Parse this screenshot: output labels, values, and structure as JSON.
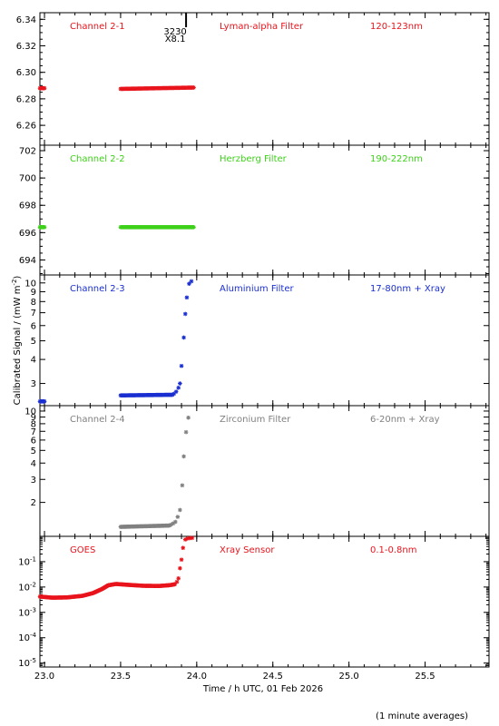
{
  "figure": {
    "ylabel_text": "Calibrated Signal / (mW m",
    "ylabel_sup": "-2",
    "ylabel_close": ")",
    "xlabel": "Time / h UTC, 01 Feb 2026",
    "footnote": "(1 minute averages)",
    "xticks": [
      "23.0",
      "23.5",
      "24.0",
      "24.5",
      "25.0",
      "25.5"
    ],
    "xlim": [
      22.97,
      25.92
    ],
    "colors": {
      "red": "#e8141c",
      "green": "#3ed11a",
      "blue": "#1a2fd0",
      "grey": "#808080",
      "black": "#000000"
    }
  },
  "chart_data": [
    {
      "type": "scatter",
      "channel": "Channel 2-1",
      "filter": "Lyman-alpha Filter",
      "band": "120-123nm",
      "color": "#e8141c",
      "yscale": "linear",
      "ylim": [
        6.245,
        6.345
      ],
      "yticks": [
        "6.26",
        "6.28",
        "6.30",
        "6.32",
        "6.34"
      ],
      "yticks_values": [
        6.26,
        6.28,
        6.3,
        6.32,
        6.34
      ],
      "annotation": {
        "lines": [
          "3230",
          "X8.1"
        ],
        "x": 23.93
      },
      "segments": [
        {
          "x_start": 22.97,
          "x_end": 23.0,
          "y_start": 6.288,
          "y_end": 6.288
        },
        {
          "x_start": 23.5,
          "x_end": 23.98,
          "y_start": 6.2875,
          "y_end": 6.2885
        }
      ],
      "points": []
    },
    {
      "type": "scatter",
      "channel": "Channel 2-2",
      "filter": "Herzberg Filter",
      "band": "190-222nm",
      "color": "#3ed11a",
      "yscale": "linear",
      "ylim": [
        692.9,
        702.4
      ],
      "yticks": [
        "694",
        "696",
        "698",
        "700",
        "702"
      ],
      "yticks_values": [
        694,
        696,
        698,
        700,
        702
      ],
      "segments": [
        {
          "x_start": 22.97,
          "x_end": 23.0,
          "y_start": 696.4,
          "y_end": 696.4
        },
        {
          "x_start": 23.5,
          "x_end": 23.98,
          "y_start": 696.4,
          "y_end": 696.4
        }
      ],
      "points": []
    },
    {
      "type": "scatter",
      "channel": "Channel 2-3",
      "filter": "Aluminium Filter",
      "band": "17-80nm + Xray",
      "color": "#1a2fd0",
      "yscale": "log",
      "ylim": [
        2.3,
        11.0
      ],
      "yticks": [
        "3",
        "4",
        "5",
        "6",
        "7",
        "8",
        "9",
        "10"
      ],
      "yticks_values": [
        3,
        4,
        5,
        6,
        7,
        8,
        9,
        10
      ],
      "segments": [
        {
          "x_start": 22.97,
          "x_end": 23.0,
          "y_start": 2.42,
          "y_end": 2.42
        },
        {
          "x_start": 23.5,
          "x_end": 23.84,
          "y_start": 2.6,
          "y_end": 2.62
        }
      ],
      "points": [
        [
          23.85,
          2.65
        ],
        [
          23.865,
          2.72
        ],
        [
          23.88,
          2.85
        ],
        [
          23.89,
          3.0
        ],
        [
          23.9,
          3.7
        ],
        [
          23.915,
          5.2
        ],
        [
          23.925,
          6.9
        ],
        [
          23.935,
          8.4
        ],
        [
          23.95,
          9.9
        ],
        [
          23.965,
          10.2
        ]
      ]
    },
    {
      "type": "scatter",
      "channel": "Channel 2-4",
      "filter": "Zirconium Filter",
      "band": "6-20nm + Xray",
      "color": "#808080",
      "yscale": "log",
      "ylim": [
        1.1,
        11.0
      ],
      "yticks": [
        "2",
        "3",
        "4",
        "5",
        "6",
        "7",
        "8",
        "9",
        "10"
      ],
      "yticks_values": [
        2,
        3,
        4,
        5,
        6,
        7,
        8,
        9,
        10
      ],
      "segments": [
        {
          "x_start": 23.5,
          "x_end": 23.82,
          "y_start": 1.3,
          "y_end": 1.33
        }
      ],
      "points": [
        [
          23.83,
          1.35
        ],
        [
          23.845,
          1.38
        ],
        [
          23.86,
          1.42
        ],
        [
          23.875,
          1.55
        ],
        [
          23.89,
          1.75
        ],
        [
          23.905,
          2.7
        ],
        [
          23.915,
          4.5
        ],
        [
          23.93,
          6.9
        ],
        [
          23.945,
          8.9
        ]
      ]
    },
    {
      "type": "scatter",
      "channel": "GOES",
      "filter": "Xray Sensor",
      "band": "0.1-0.8nm",
      "color": "#e8141c",
      "yscale": "log",
      "ylim": [
        7e-06,
        1.0
      ],
      "yticks_values": [
        1e-05,
        0.0001,
        0.001,
        0.01,
        0.1
      ],
      "yticks": [
        {
          "base": "10",
          "exp": "-5"
        },
        {
          "base": "10",
          "exp": "-4"
        },
        {
          "base": "10",
          "exp": "-3"
        },
        {
          "base": "10",
          "exp": "-2"
        },
        {
          "base": "10",
          "exp": "-1"
        }
      ],
      "curve": [
        [
          22.97,
          0.0042
        ],
        [
          23.05,
          0.0038
        ],
        [
          23.15,
          0.0039
        ],
        [
          23.25,
          0.0045
        ],
        [
          23.32,
          0.0058
        ],
        [
          23.38,
          0.0085
        ],
        [
          23.42,
          0.0118
        ],
        [
          23.47,
          0.0132
        ],
        [
          23.55,
          0.0122
        ],
        [
          23.65,
          0.0112
        ],
        [
          23.75,
          0.011
        ],
        [
          23.82,
          0.0118
        ],
        [
          23.86,
          0.013
        ]
      ],
      "points": [
        [
          23.87,
          0.016
        ],
        [
          23.88,
          0.022
        ],
        [
          23.89,
          0.055
        ],
        [
          23.9,
          0.12
        ],
        [
          23.91,
          0.35
        ],
        [
          23.925,
          0.75
        ],
        [
          23.94,
          0.82
        ],
        [
          23.955,
          0.85
        ],
        [
          23.97,
          0.86
        ]
      ]
    }
  ]
}
